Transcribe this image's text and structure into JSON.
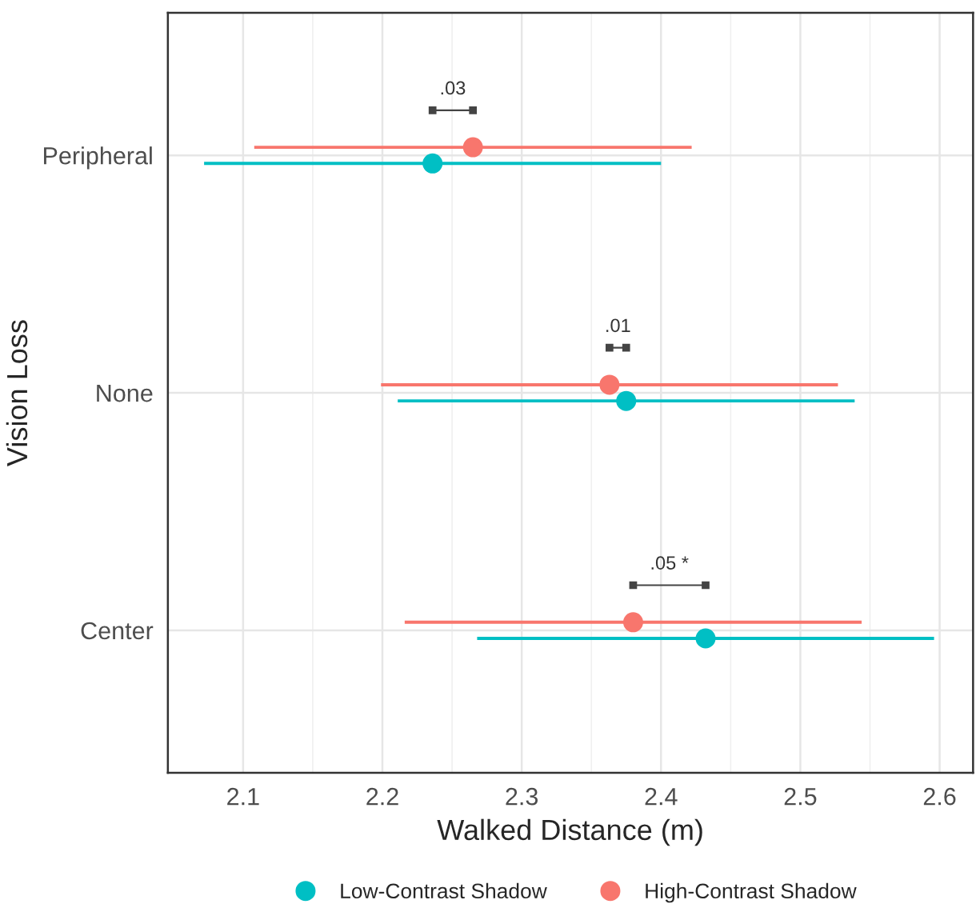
{
  "chart_data": {
    "type": "scatter",
    "orientation": "horizontal",
    "xlabel": "Walked Distance (m)",
    "ylabel": "Vision Loss",
    "categories": [
      "Peripheral",
      "None",
      "Center"
    ],
    "series": [
      {
        "name": "Low-Contrast Shadow",
        "color": "#00bfc4",
        "values": [
          2.236,
          2.375,
          2.432
        ],
        "errors": [
          0.164,
          0.164,
          0.164
        ]
      },
      {
        "name": "High-Contrast Shadow",
        "color": "#f8766d",
        "values": [
          2.265,
          2.363,
          2.38
        ],
        "errors": [
          0.157,
          0.164,
          0.164
        ]
      }
    ],
    "annotations": [
      ".03",
      ".01",
      ".05 *"
    ],
    "xlim": [
      2.046,
      2.624
    ],
    "xticks": [
      2.1,
      2.2,
      2.3,
      2.4,
      2.5,
      2.6
    ],
    "grid": true,
    "legend": "bottom",
    "marker": "circle"
  }
}
